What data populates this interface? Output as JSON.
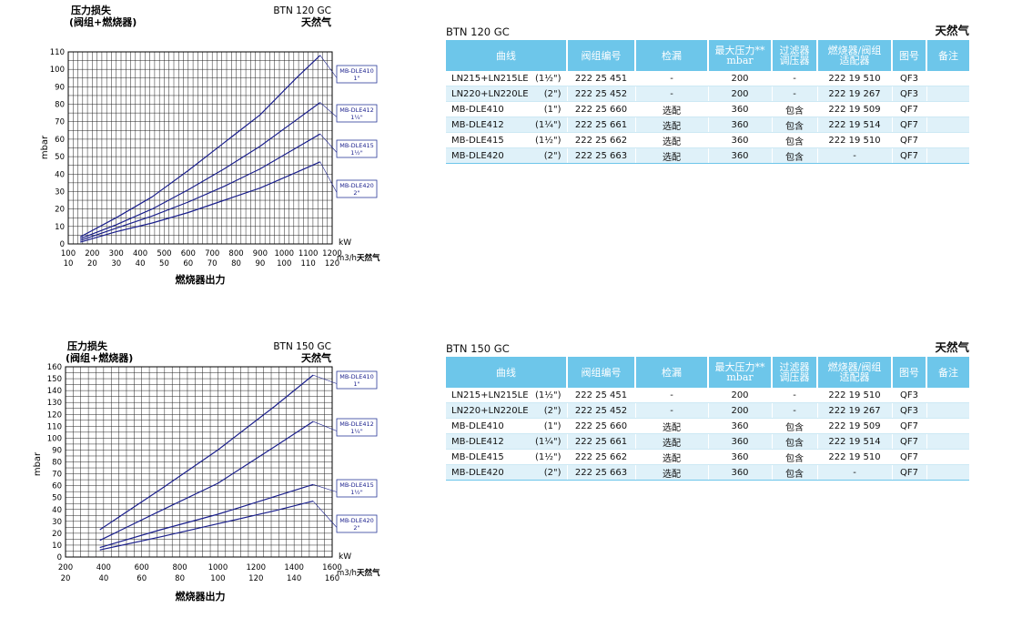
{
  "charts": [
    {
      "title_line1": "压力损失",
      "title_line2": "(阀组+燃烧器)",
      "model": "BTN 120 GC",
      "gas": "天然气",
      "ylabel": "mbar",
      "xlabel": "燃烧器出力",
      "kw_unit": "kW",
      "m3_unit": "m3/h",
      "m3_gas": "天然气"
    },
    {
      "title_line1": "压力损失",
      "title_line2": "(阀组+燃烧器)",
      "model": "BTN 150 GC",
      "gas": "天然气",
      "ylabel": "mbar",
      "xlabel": "燃烧器出力",
      "kw_unit": "kW",
      "m3_unit": "m3/h",
      "m3_gas": "天然气"
    }
  ],
  "chart_data": [
    {
      "type": "line",
      "title": "BTN 120 GC",
      "ylabel": "mbar",
      "xlabel": "燃烧器出力",
      "xlim_kw": [
        100,
        1200
      ],
      "xticks_kw": [
        100,
        200,
        300,
        400,
        500,
        600,
        700,
        800,
        900,
        1000,
        1100,
        1200
      ],
      "xlim_m3h": [
        10,
        120
      ],
      "xticks_m3h": [
        10,
        20,
        30,
        40,
        50,
        60,
        70,
        80,
        90,
        100,
        110,
        120
      ],
      "ylim": [
        0,
        110
      ],
      "yticks": [
        0,
        10,
        20,
        30,
        40,
        50,
        60,
        70,
        80,
        90,
        100,
        110
      ],
      "grid": true,
      "series": [
        {
          "name": "MB-DLE410",
          "size": "1\"",
          "x": [
            150,
            300,
            450,
            600,
            750,
            900,
            1050,
            1150
          ],
          "y": [
            4,
            15,
            27,
            42,
            58,
            74,
            95,
            108
          ]
        },
        {
          "name": "MB-DLE412",
          "size": "1¼\"",
          "x": [
            150,
            300,
            450,
            600,
            750,
            900,
            1050,
            1150
          ],
          "y": [
            3,
            11,
            20,
            31,
            43,
            56,
            71,
            81
          ]
        },
        {
          "name": "MB-DLE415",
          "size": "1½\"",
          "x": [
            150,
            300,
            450,
            600,
            750,
            900,
            1050,
            1150
          ],
          "y": [
            2,
            9,
            16,
            24,
            33,
            43,
            55,
            63
          ]
        },
        {
          "name": "MB-DLE420",
          "size": "2\"",
          "x": [
            150,
            300,
            450,
            600,
            750,
            900,
            1050,
            1150
          ],
          "y": [
            1,
            7,
            12,
            18,
            25,
            32,
            41,
            47
          ]
        }
      ]
    },
    {
      "type": "line",
      "title": "BTN 150 GC",
      "ylabel": "mbar",
      "xlabel": "燃烧器出力",
      "xlim_kw": [
        200,
        1600
      ],
      "xticks_kw": [
        200,
        400,
        600,
        800,
        1000,
        1200,
        1400,
        1600
      ],
      "xlim_m3h": [
        20,
        160
      ],
      "xticks_m3h": [
        20,
        40,
        60,
        80,
        100,
        120,
        140,
        160
      ],
      "ylim": [
        0,
        160
      ],
      "yticks": [
        0,
        10,
        20,
        30,
        40,
        50,
        60,
        70,
        80,
        90,
        100,
        110,
        120,
        130,
        140,
        150,
        160
      ],
      "grid": true,
      "series": [
        {
          "name": "MB-DLE410",
          "size": "1\"",
          "x": [
            380,
            700,
            1000,
            1300,
            1500
          ],
          "y": [
            23,
            57,
            90,
            127,
            153
          ]
        },
        {
          "name": "MB-DLE412",
          "size": "1¼\"",
          "x": [
            380,
            700,
            1000,
            1300,
            1500
          ],
          "y": [
            14,
            39,
            62,
            93,
            114
          ]
        },
        {
          "name": "MB-DLE415",
          "size": "1½\"",
          "x": [
            380,
            700,
            1000,
            1300,
            1500
          ],
          "y": [
            8,
            23,
            36,
            51,
            61
          ]
        },
        {
          "name": "MB-DLE420",
          "size": "2\"",
          "x": [
            380,
            700,
            1000,
            1300,
            1500
          ],
          "y": [
            6,
            17,
            28,
            39,
            47
          ]
        }
      ]
    }
  ],
  "tables": [
    {
      "model": "BTN 120 GC",
      "gas": "天然气",
      "headers": [
        "曲线",
        "阀组编号",
        "检漏",
        "最大压力**\nmbar",
        "过滤器\n调压器",
        "燃烧器/阀组\n适配器",
        "图号",
        "备注"
      ],
      "rows": [
        {
          "curve": "LN215+LN215LE",
          "size": "(1½\")",
          "code": "222 25 451",
          "leak": "-",
          "pmax": "200",
          "filter": "-",
          "adapter": "222 19 510",
          "fig": "QF3",
          "note": ""
        },
        {
          "curve": "LN220+LN220LE",
          "size": "(2\")",
          "code": "222 25 452",
          "leak": "-",
          "pmax": "200",
          "filter": "-",
          "adapter": "222 19 267",
          "fig": "QF3",
          "note": ""
        },
        {
          "curve": "MB-DLE410",
          "size": "(1\")",
          "code": "222 25 660",
          "leak": "选配",
          "pmax": "360",
          "filter": "包含",
          "adapter": "222 19 509",
          "fig": "QF7",
          "note": ""
        },
        {
          "curve": "MB-DLE412",
          "size": "(1¼\")",
          "code": "222 25 661",
          "leak": "选配",
          "pmax": "360",
          "filter": "包含",
          "adapter": "222 19 514",
          "fig": "QF7",
          "note": ""
        },
        {
          "curve": "MB-DLE415",
          "size": "(1½\")",
          "code": "222 25 662",
          "leak": "选配",
          "pmax": "360",
          "filter": "包含",
          "adapter": "222 19 510",
          "fig": "QF7",
          "note": ""
        },
        {
          "curve": "MB-DLE420",
          "size": "(2\")",
          "code": "222 25 663",
          "leak": "选配",
          "pmax": "360",
          "filter": "包含",
          "adapter": "-",
          "fig": "QF7",
          "note": ""
        }
      ]
    },
    {
      "model": "BTN 150 GC",
      "gas": "天然气",
      "headers": [
        "曲线",
        "阀组编号",
        "检漏",
        "最大压力**\nmbar",
        "过滤器\n调压器",
        "燃烧器/阀组\n适配器",
        "图号",
        "备注"
      ],
      "rows": [
        {
          "curve": "LN215+LN215LE",
          "size": "(1½\")",
          "code": "222 25 451",
          "leak": "-",
          "pmax": "200",
          "filter": "-",
          "adapter": "222 19 510",
          "fig": "QF3",
          "note": ""
        },
        {
          "curve": "LN220+LN220LE",
          "size": "(2\")",
          "code": "222 25 452",
          "leak": "-",
          "pmax": "200",
          "filter": "-",
          "adapter": "222 19 267",
          "fig": "QF3",
          "note": ""
        },
        {
          "curve": "MB-DLE410",
          "size": "(1\")",
          "code": "222 25 660",
          "leak": "选配",
          "pmax": "360",
          "filter": "包含",
          "adapter": "222 19 509",
          "fig": "QF7",
          "note": ""
        },
        {
          "curve": "MB-DLE412",
          "size": "(1¼\")",
          "code": "222 25 661",
          "leak": "选配",
          "pmax": "360",
          "filter": "包含",
          "adapter": "222 19 514",
          "fig": "QF7",
          "note": ""
        },
        {
          "curve": "MB-DLE415",
          "size": "(1½\")",
          "code": "222 25 662",
          "leak": "选配",
          "pmax": "360",
          "filter": "包含",
          "adapter": "222 19 510",
          "fig": "QF7",
          "note": ""
        },
        {
          "curve": "MB-DLE420",
          "size": "(2\")",
          "code": "222 25 663",
          "leak": "选配",
          "pmax": "360",
          "filter": "包含",
          "adapter": "-",
          "fig": "QF7",
          "note": ""
        }
      ]
    }
  ],
  "colors": {
    "curve": "#1a1f8c",
    "grid": "#222222",
    "header_bg": "#6dc6ea",
    "label_border": "#2a3a9a"
  }
}
